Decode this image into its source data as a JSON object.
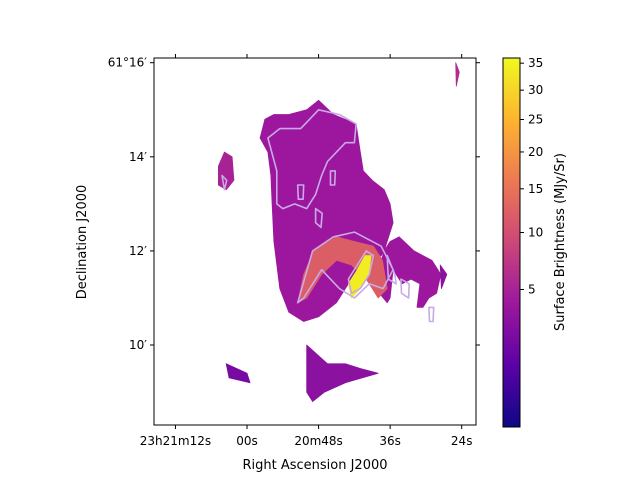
{
  "chart_data": {
    "type": "heatmap",
    "title": "",
    "xlabel": "Right Ascension J2000",
    "ylabel": "Declination J2000",
    "colorbar_label": "Surface Brightness (MJy/Sr)",
    "colormap": "plasma",
    "colormap_stops": [
      "#0d0887",
      "#5c01a6",
      "#9c179e",
      "#cc4778",
      "#ed7953",
      "#fdb42f",
      "#f0f921"
    ],
    "color_scale": "sqrt",
    "color_range": [
      0,
      36
    ],
    "contour_color": "#c9a9e6",
    "x_ticks": [
      {
        "value": 132,
        "label": "23h21m12s"
      },
      {
        "value": 120,
        "label": "00s"
      },
      {
        "value": 108,
        "label": "20m48s"
      },
      {
        "value": 96,
        "label": "36s"
      },
      {
        "value": 84,
        "label": "24s"
      }
    ],
    "y_ticks": [
      {
        "value": 16,
        "label": "61°16′"
      },
      {
        "value": 14,
        "label": "14′"
      },
      {
        "value": 12,
        "label": "12′"
      },
      {
        "value": 10,
        "label": "10′"
      }
    ],
    "x_range_s": [
      135.6,
      81.6
    ],
    "y_range_arcmin": [
      8.3,
      16.1
    ],
    "colorbar_ticks": [
      5,
      10,
      15,
      20,
      25,
      30,
      35
    ],
    "grid": false,
    "emission_regions": [
      {
        "name": "northern-cloud",
        "intensity": 4,
        "points": [
          [
            101.7,
            14.7
          ],
          [
            105.5,
            14.9
          ],
          [
            108.0,
            15.2
          ],
          [
            110.0,
            15.0
          ],
          [
            113.0,
            14.9
          ],
          [
            115.5,
            14.9
          ],
          [
            117.0,
            14.8
          ],
          [
            117.8,
            14.4
          ],
          [
            116.5,
            14.1
          ],
          [
            116.0,
            13.6
          ],
          [
            115.8,
            13.0
          ],
          [
            115.5,
            12.2
          ],
          [
            114.5,
            11.2
          ],
          [
            113.0,
            10.7
          ],
          [
            110.5,
            10.5
          ],
          [
            108.0,
            10.6
          ],
          [
            105.0,
            10.9
          ],
          [
            103.0,
            11.3
          ],
          [
            101.0,
            11.6
          ],
          [
            100.0,
            11.6
          ],
          [
            98.5,
            11.8
          ],
          [
            97.5,
            11.9
          ],
          [
            96.0,
            12.2
          ],
          [
            94.5,
            12.3
          ],
          [
            92.0,
            12.0
          ],
          [
            90.5,
            11.9
          ],
          [
            89.0,
            11.8
          ],
          [
            87.5,
            11.5
          ],
          [
            88.2,
            11.1
          ],
          [
            89.5,
            11.0
          ],
          [
            90.5,
            10.8
          ],
          [
            91.5,
            10.8
          ],
          [
            91.0,
            11.3
          ],
          [
            92.5,
            11.4
          ],
          [
            94.0,
            11.3
          ],
          [
            95.5,
            11.6
          ],
          [
            96.0,
            11.0
          ],
          [
            96.5,
            10.9
          ],
          [
            97.8,
            11.1
          ],
          [
            97.5,
            11.8
          ],
          [
            95.5,
            12.6
          ],
          [
            96.0,
            13.0
          ],
          [
            97.0,
            13.3
          ],
          [
            99.0,
            13.5
          ],
          [
            100.5,
            13.7
          ],
          [
            101.0,
            14.1
          ]
        ]
      },
      {
        "name": "bright-arc",
        "intensity": 12,
        "points": [
          [
            111.5,
            10.9
          ],
          [
            110.5,
            11.5
          ],
          [
            108.8,
            12.0
          ],
          [
            105.0,
            12.3
          ],
          [
            102.0,
            12.2
          ],
          [
            98.8,
            12.1
          ],
          [
            97.3,
            11.8
          ],
          [
            96.5,
            11.2
          ],
          [
            98.0,
            11.0
          ],
          [
            100.0,
            11.4
          ],
          [
            102.5,
            11.7
          ],
          [
            105.0,
            11.8
          ],
          [
            107.5,
            11.5
          ],
          [
            110.0,
            11.0
          ]
        ]
      },
      {
        "name": "bright-core",
        "intensity": 34,
        "points": [
          [
            103.0,
            11.3
          ],
          [
            101.5,
            11.6
          ],
          [
            100.2,
            11.9
          ],
          [
            99.2,
            11.9
          ],
          [
            99.6,
            11.5
          ],
          [
            101.0,
            11.2
          ],
          [
            102.5,
            11.0
          ]
        ]
      },
      {
        "name": "western-clump",
        "intensity": 5,
        "points": [
          [
            124.8,
            13.8
          ],
          [
            123.8,
            14.1
          ],
          [
            122.5,
            14.0
          ],
          [
            122.2,
            13.5
          ],
          [
            123.5,
            13.3
          ],
          [
            124.8,
            13.4
          ]
        ]
      },
      {
        "name": "southern-patch",
        "intensity": 3,
        "points": [
          [
            110.0,
            10.0
          ],
          [
            106.5,
            9.6
          ],
          [
            103.5,
            9.6
          ],
          [
            101.0,
            9.5
          ],
          [
            98.0,
            9.4
          ],
          [
            103.5,
            9.2
          ],
          [
            107.0,
            9.0
          ],
          [
            109.0,
            8.8
          ],
          [
            110.0,
            9.0
          ]
        ]
      },
      {
        "name": "southwest-wisp",
        "intensity": 2,
        "points": [
          [
            123.5,
            9.6
          ],
          [
            120.0,
            9.4
          ],
          [
            119.5,
            9.2
          ],
          [
            123.0,
            9.3
          ]
        ]
      },
      {
        "name": "north-east-knot",
        "intensity": 6,
        "points": [
          [
            85.0,
            16.0
          ],
          [
            84.4,
            15.8
          ],
          [
            84.9,
            15.5
          ]
        ]
      },
      {
        "name": "east-knot",
        "intensity": 3,
        "points": [
          [
            87.6,
            11.7
          ],
          [
            86.5,
            11.5
          ],
          [
            87.4,
            11.2
          ]
        ]
      }
    ],
    "contours": [
      {
        "name": "outer-north",
        "points": [
          [
            101.7,
            14.7
          ],
          [
            104.5,
            14.9
          ],
          [
            108.0,
            15.0
          ],
          [
            111.0,
            14.6
          ],
          [
            114.5,
            14.6
          ],
          [
            116.5,
            14.4
          ],
          [
            115.0,
            13.7
          ],
          [
            115.0,
            13.0
          ],
          [
            114.0,
            12.9
          ],
          [
            112.0,
            13.0
          ],
          [
            110.0,
            12.9
          ],
          [
            108.5,
            13.2
          ],
          [
            107.5,
            13.6
          ],
          [
            106.5,
            13.9
          ],
          [
            105.0,
            14.1
          ],
          [
            103.5,
            14.3
          ],
          [
            102.0,
            14.3
          ]
        ]
      },
      {
        "name": "outer-south",
        "points": [
          [
            111.5,
            10.9
          ],
          [
            109.0,
            12.0
          ],
          [
            105.5,
            12.3
          ],
          [
            102.0,
            12.4
          ],
          [
            97.5,
            12.1
          ],
          [
            95.5,
            11.6
          ],
          [
            97.2,
            11.2
          ],
          [
            99.5,
            11.3
          ],
          [
            102.0,
            11.0
          ],
          [
            104.5,
            11.2
          ],
          [
            107.5,
            11.6
          ],
          [
            110.5,
            11.0
          ]
        ]
      },
      {
        "name": "inner-core",
        "points": [
          [
            103.0,
            11.4
          ],
          [
            101.5,
            11.7
          ],
          [
            100.0,
            12.0
          ],
          [
            98.8,
            11.9
          ],
          [
            99.5,
            11.5
          ],
          [
            101.0,
            11.2
          ],
          [
            102.5,
            11.1
          ]
        ]
      },
      {
        "name": "small-ring-a",
        "points": [
          [
            106.0,
            13.7
          ],
          [
            105.2,
            13.7
          ],
          [
            105.3,
            13.4
          ],
          [
            106.0,
            13.4
          ]
        ]
      },
      {
        "name": "small-ring-b",
        "points": [
          [
            111.5,
            13.4
          ],
          [
            110.5,
            13.4
          ],
          [
            110.6,
            13.1
          ],
          [
            111.4,
            13.1
          ]
        ]
      },
      {
        "name": "small-ring-c",
        "points": [
          [
            108.5,
            12.9
          ],
          [
            107.4,
            12.8
          ],
          [
            107.6,
            12.5
          ],
          [
            108.5,
            12.6
          ]
        ]
      },
      {
        "name": "small-ring-d",
        "points": [
          [
            94.2,
            11.4
          ],
          [
            92.8,
            11.3
          ],
          [
            92.9,
            11.0
          ],
          [
            94.1,
            11.1
          ]
        ]
      },
      {
        "name": "small-ring-e",
        "points": [
          [
            89.5,
            10.8
          ],
          [
            88.7,
            10.8
          ],
          [
            88.8,
            10.5
          ],
          [
            89.4,
            10.5
          ]
        ]
      },
      {
        "name": "small-ring-f",
        "points": [
          [
            124.2,
            13.6
          ],
          [
            123.4,
            13.5
          ],
          [
            123.8,
            13.3
          ]
        ]
      },
      {
        "name": "east-ring",
        "points": [
          [
            96.5,
            11.9
          ],
          [
            95.2,
            11.5
          ],
          [
            95.0,
            11.3
          ],
          [
            96.3,
            11.4
          ]
        ]
      }
    ]
  }
}
